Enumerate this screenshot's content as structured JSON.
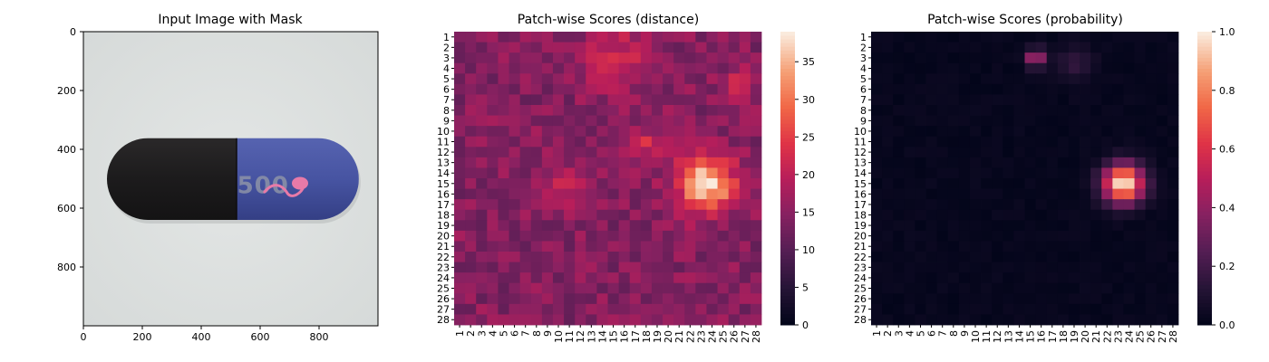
{
  "chart_data": [
    {
      "type": "image",
      "title": "Input Image with Mask",
      "xlim": [
        0,
        1000
      ],
      "ylim": [
        1000,
        0
      ],
      "x_ticks": [
        0,
        200,
        400,
        600,
        800
      ],
      "y_ticks": [
        0,
        200,
        400,
        600,
        800
      ],
      "content": {
        "background_color": "#dfe2e1",
        "object": "capsule",
        "left_half_color": "#1c1b1c",
        "right_half_color": "#4b5aa6",
        "capsule_x_range": [
          80,
          935
        ],
        "capsule_y_range": [
          362,
          640
        ],
        "cap_split_x": 520,
        "printed_text": "500",
        "mask_color": "#e87aa8",
        "mask_blob_x_range": [
          615,
          760
        ],
        "mask_blob_y_range": [
          500,
          565
        ]
      }
    },
    {
      "type": "heatmap",
      "title": "Patch-wise Scores (distance)",
      "rows": [
        "1",
        "2",
        "3",
        "4",
        "5",
        "6",
        "7",
        "8",
        "9",
        "10",
        "11",
        "12",
        "13",
        "14",
        "15",
        "16",
        "17",
        "18",
        "19",
        "20",
        "21",
        "22",
        "23",
        "24",
        "25",
        "26",
        "27",
        "28"
      ],
      "columns": [
        "1",
        "2",
        "3",
        "4",
        "5",
        "6",
        "7",
        "8",
        "9",
        "10",
        "11",
        "12",
        "13",
        "14",
        "15",
        "16",
        "17",
        "18",
        "19",
        "20",
        "21",
        "22",
        "23",
        "24",
        "25",
        "26",
        "27",
        "28"
      ],
      "colormap": "rocket",
      "vmin": 0,
      "vmax": 39,
      "colorbar_ticks": [
        0,
        5,
        10,
        15,
        20,
        25,
        30,
        35
      ],
      "baseline": 14.5,
      "hotspots": [
        {
          "row": 15,
          "col": 23.5,
          "peak": 38.5,
          "spread": 1.8
        },
        {
          "row": 11.5,
          "col": 18,
          "peak": 21.5,
          "spread": 1.3
        },
        {
          "row": 3,
          "col": 15.5,
          "peak": 22,
          "spread": 2.0
        },
        {
          "row": 15,
          "col": 10.5,
          "peak": 20.5,
          "spread": 1.3
        },
        {
          "row": 5.5,
          "col": 26.5,
          "peak": 22.5,
          "spread": 1.0
        }
      ]
    },
    {
      "type": "heatmap",
      "title": "Patch-wise Scores (probability)",
      "rows": [
        "1",
        "2",
        "3",
        "4",
        "5",
        "6",
        "7",
        "8",
        "9",
        "10",
        "11",
        "12",
        "13",
        "14",
        "15",
        "16",
        "17",
        "18",
        "19",
        "20",
        "21",
        "22",
        "23",
        "24",
        "25",
        "26",
        "27",
        "28"
      ],
      "columns": [
        "1",
        "2",
        "3",
        "4",
        "5",
        "6",
        "7",
        "8",
        "9",
        "10",
        "11",
        "12",
        "13",
        "14",
        "15",
        "16",
        "17",
        "18",
        "19",
        "20",
        "21",
        "22",
        "23",
        "24",
        "25",
        "26",
        "27",
        "28"
      ],
      "colormap": "rocket",
      "vmin": 0.0,
      "vmax": 1.0,
      "colorbar_ticks": [
        0.0,
        0.2,
        0.4,
        0.6,
        0.8,
        1.0
      ],
      "baseline": 0.0,
      "hotspots": [
        {
          "row": 15,
          "col": 23.5,
          "peak": 1.0,
          "spread": 1.3
        },
        {
          "row": 3,
          "col": 15.5,
          "peak": 0.5,
          "spread": 0.6
        },
        {
          "row": 3.5,
          "col": 19,
          "peak": 0.13,
          "spread": 1.2
        }
      ]
    }
  ]
}
